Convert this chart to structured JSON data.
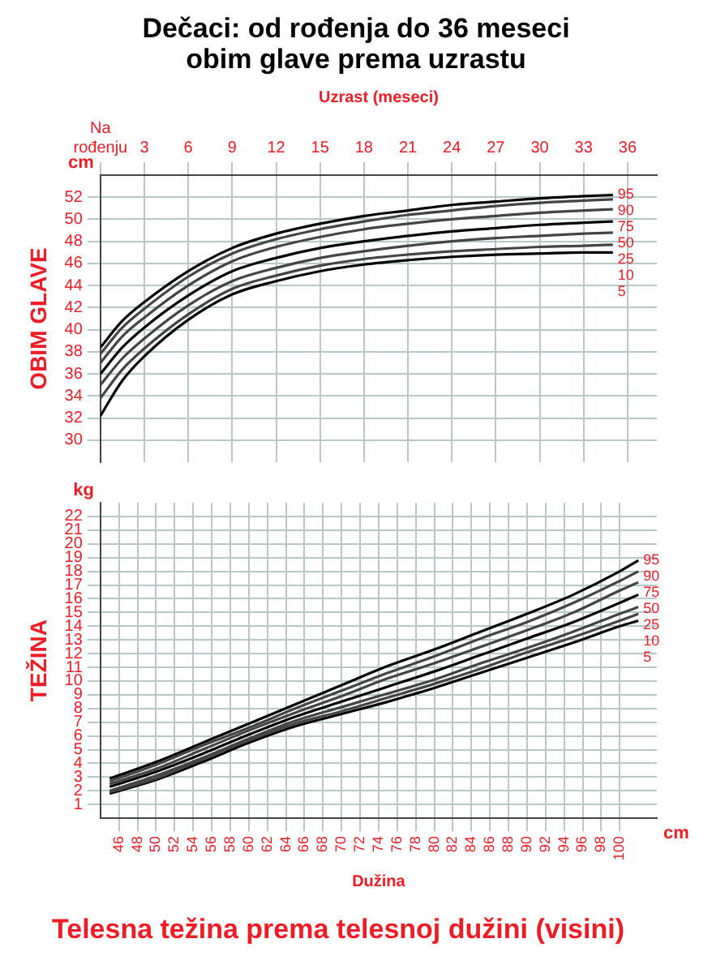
{
  "chart_data": [
    {
      "type": "line",
      "title": "Dečaci: od rođenja do 36 meseci",
      "subtitle": "obim glave prema uzrastu",
      "xlabel": "Uzrast (meseci)",
      "ylabel": "OBIM GLAVE",
      "annotations": [
        "cm"
      ],
      "x": [
        0,
        1.5,
        3,
        6,
        9,
        12,
        15,
        18,
        21,
        24,
        27,
        30,
        33,
        35
      ],
      "xlim": [
        0,
        38
      ],
      "xticks": [
        {
          "value": 0,
          "label": "Na rođenju"
        },
        3,
        6,
        9,
        12,
        15,
        18,
        21,
        24,
        27,
        30,
        33,
        36
      ],
      "ylim": [
        28,
        54
      ],
      "yticks": [
        30,
        32,
        34,
        36,
        38,
        40,
        42,
        44,
        46,
        48,
        50,
        52
      ],
      "grid": true,
      "legend": false,
      "marker": "none",
      "line_style": "solid",
      "series": [
        {
          "name": "95",
          "color": "#000000",
          "values": [
            38.4,
            40.8,
            42.5,
            45.3,
            47.4,
            48.7,
            49.6,
            50.3,
            50.8,
            51.3,
            51.6,
            51.9,
            52.1,
            52.2
          ]
        },
        {
          "name": "90",
          "color": "#444444",
          "values": [
            37.8,
            40.2,
            41.9,
            44.8,
            46.9,
            48.2,
            49.1,
            49.8,
            50.4,
            50.8,
            51.2,
            51.5,
            51.7,
            51.8
          ]
        },
        {
          "name": "75",
          "color": "#444444",
          "values": [
            37.0,
            39.4,
            41.1,
            44.0,
            46.2,
            47.5,
            48.4,
            49.1,
            49.6,
            50.0,
            50.3,
            50.6,
            50.8,
            50.9
          ]
        },
        {
          "name": "50",
          "color": "#000000",
          "values": [
            36.0,
            38.4,
            40.2,
            43.1,
            45.3,
            46.5,
            47.4,
            48.0,
            48.5,
            48.9,
            49.2,
            49.5,
            49.7,
            49.8
          ]
        },
        {
          "name": "25",
          "color": "#444444",
          "values": [
            35.0,
            37.4,
            39.2,
            42.2,
            44.4,
            45.6,
            46.5,
            47.1,
            47.6,
            48.0,
            48.3,
            48.5,
            48.7,
            48.8
          ]
        },
        {
          "name": "10",
          "color": "#444444",
          "values": [
            33.8,
            36.4,
            38.3,
            41.4,
            43.7,
            44.9,
            45.8,
            46.4,
            46.8,
            47.1,
            47.3,
            47.5,
            47.6,
            47.7
          ]
        },
        {
          "name": "5",
          "color": "#000000",
          "values": [
            32.2,
            35.4,
            37.6,
            40.9,
            43.2,
            44.4,
            45.3,
            45.9,
            46.3,
            46.6,
            46.8,
            46.9,
            47.0,
            47.0
          ]
        }
      ]
    },
    {
      "type": "line",
      "title": "Telesna težina prema telesnoj dužini (visini)",
      "xlabel": "Dužina",
      "ylabel": "TEŽINA",
      "annotations": [
        "kg",
        "cm"
      ],
      "x": [
        45,
        50,
        55,
        60,
        65,
        70,
        75,
        80,
        85,
        90,
        95,
        100,
        102
      ],
      "xlim": [
        44,
        104
      ],
      "xticks": [
        46,
        48,
        50,
        52,
        54,
        56,
        58,
        60,
        62,
        64,
        66,
        68,
        70,
        72,
        74,
        76,
        78,
        80,
        82,
        84,
        86,
        88,
        90,
        92,
        94,
        96,
        98,
        100
      ],
      "ylim": [
        0,
        23
      ],
      "yticks": [
        1,
        2,
        3,
        4,
        5,
        6,
        7,
        8,
        9,
        10,
        11,
        12,
        13,
        14,
        15,
        16,
        17,
        18,
        19,
        20,
        21,
        22
      ],
      "grid": true,
      "legend": false,
      "marker": "none",
      "line_style": "solid",
      "series": [
        {
          "name": "95",
          "color": "#000000",
          "values": [
            2.9,
            4.1,
            5.5,
            6.9,
            8.3,
            9.7,
            11.1,
            12.3,
            13.6,
            14.9,
            16.3,
            18.0,
            18.8
          ]
        },
        {
          "name": "90",
          "color": "#444444",
          "values": [
            2.7,
            3.9,
            5.3,
            6.6,
            8.0,
            9.3,
            10.6,
            11.8,
            13.1,
            14.3,
            15.7,
            17.3,
            18.0
          ]
        },
        {
          "name": "75",
          "color": "#444444",
          "values": [
            2.5,
            3.6,
            5.0,
            6.4,
            7.7,
            8.9,
            10.2,
            11.3,
            12.5,
            13.7,
            15.0,
            16.6,
            17.2
          ]
        },
        {
          "name": "50",
          "color": "#000000",
          "values": [
            2.3,
            3.4,
            4.7,
            6.1,
            7.4,
            8.5,
            9.6,
            10.7,
            11.9,
            13.1,
            14.3,
            15.7,
            16.3
          ]
        },
        {
          "name": "25",
          "color": "#444444",
          "values": [
            2.0,
            3.1,
            4.4,
            5.8,
            7.1,
            8.1,
            9.1,
            10.1,
            11.3,
            12.4,
            13.6,
            14.9,
            15.4
          ]
        },
        {
          "name": "10",
          "color": "#444444",
          "values": [
            1.9,
            2.9,
            4.3,
            5.7,
            6.9,
            7.8,
            8.8,
            9.8,
            10.9,
            12.1,
            13.2,
            14.4,
            14.9
          ]
        },
        {
          "name": "5",
          "color": "#000000",
          "values": [
            1.8,
            2.8,
            4.1,
            5.5,
            6.7,
            7.6,
            8.5,
            9.5,
            10.6,
            11.7,
            12.8,
            14.0,
            14.4
          ]
        }
      ]
    }
  ]
}
